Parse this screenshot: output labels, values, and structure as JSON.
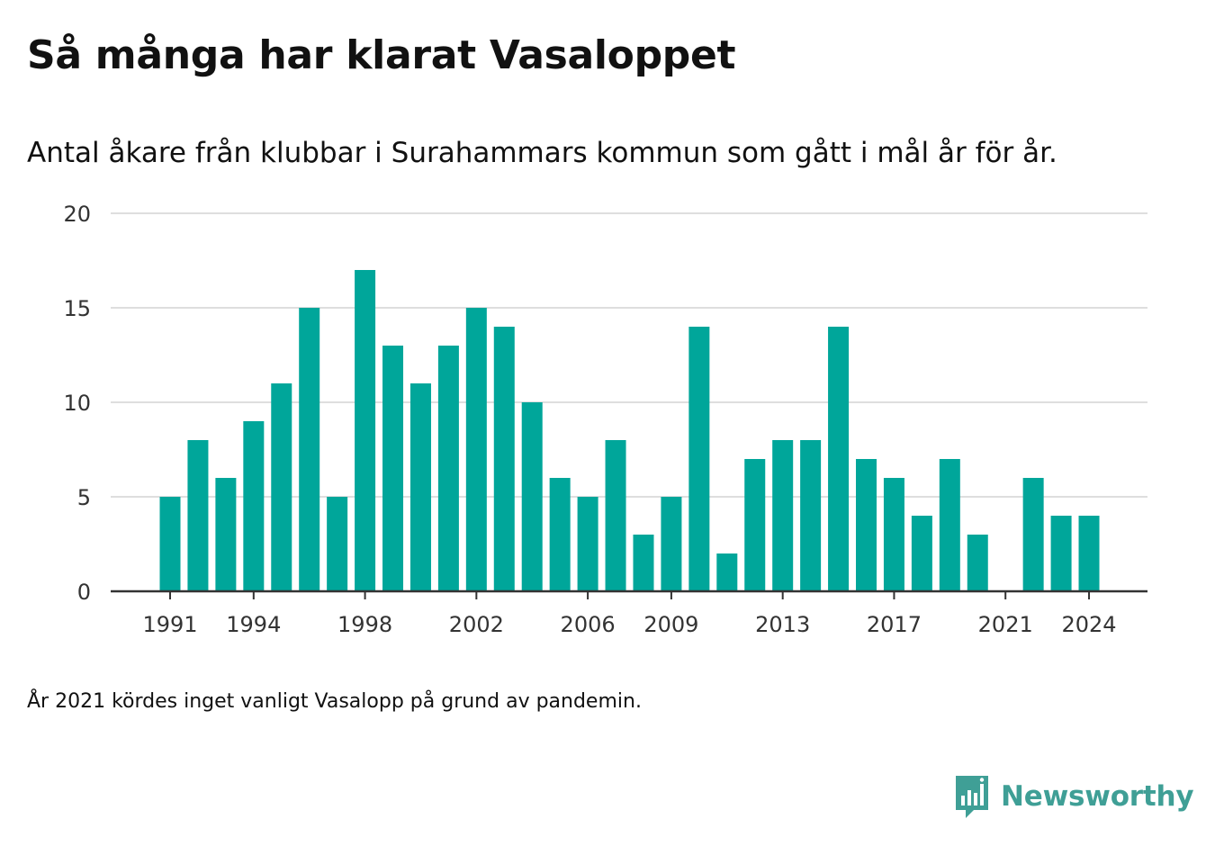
{
  "chart_data": {
    "type": "bar",
    "title": "Så många har klarat Vasaloppet",
    "subtitle": "Antal åkare från klubbar i Surahammars kommun som gått i mål år för år.",
    "xlabel": "",
    "ylabel": "",
    "ylim": [
      0,
      20
    ],
    "yticks": [
      0,
      5,
      10,
      15,
      20
    ],
    "xticks": [
      1991,
      1994,
      1998,
      2002,
      2006,
      2009,
      2013,
      2017,
      2021,
      2024
    ],
    "grid": true,
    "bar_color": "#00a69a",
    "categories": [
      1991,
      1992,
      1993,
      1994,
      1995,
      1996,
      1997,
      1998,
      1999,
      2000,
      2001,
      2002,
      2003,
      2004,
      2005,
      2006,
      2007,
      2008,
      2009,
      2010,
      2011,
      2012,
      2013,
      2014,
      2015,
      2016,
      2017,
      2018,
      2019,
      2020,
      2021,
      2022,
      2023,
      2024
    ],
    "values": [
      5,
      8,
      6,
      9,
      11,
      15,
      5,
      17,
      13,
      11,
      13,
      15,
      14,
      10,
      6,
      5,
      8,
      3,
      5,
      14,
      2,
      7,
      8,
      8,
      14,
      7,
      6,
      4,
      7,
      3,
      0,
      6,
      4,
      4
    ],
    "note": "År 2021 kördes inget vanligt Vasalopp på grund av pandemin."
  },
  "brand": {
    "name": "Newsworthy",
    "color": "#3f9f96",
    "icon": "bar-chart-speech-bubble-icon"
  }
}
